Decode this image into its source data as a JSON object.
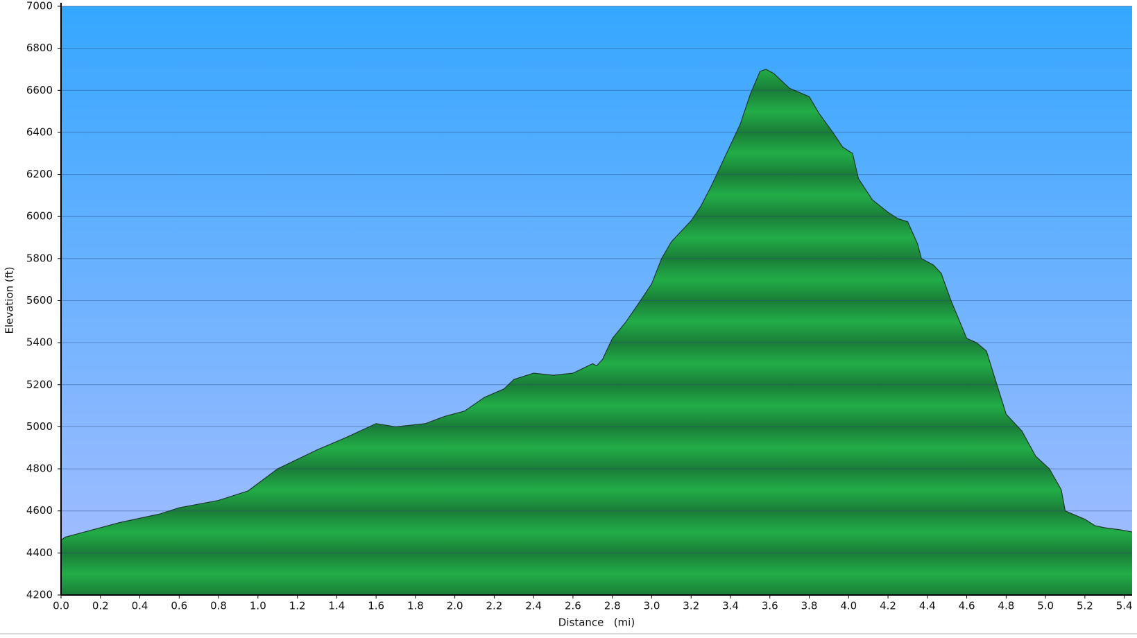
{
  "chart_data": {
    "type": "area",
    "xlabel": "Distance   (mi)",
    "ylabel": "Elevation (ft)",
    "color": "#22ad48",
    "line_color": "#1d3a2a",
    "grid": true,
    "x": [
      0.0,
      0.02,
      0.3,
      0.5,
      0.6,
      0.8,
      0.9,
      0.95,
      1.1,
      1.3,
      1.45,
      1.6,
      1.7,
      1.85,
      1.95,
      2.05,
      2.15,
      2.25,
      2.3,
      2.4,
      2.5,
      2.6,
      2.7,
      2.72,
      2.75,
      2.8,
      2.87,
      2.95,
      3.0,
      3.05,
      3.1,
      3.2,
      3.25,
      3.3,
      3.4,
      3.45,
      3.5,
      3.55,
      3.58,
      3.62,
      3.7,
      3.8,
      3.85,
      3.92,
      3.97,
      4.02,
      4.05,
      4.12,
      4.2,
      4.25,
      4.3,
      4.35,
      4.37,
      4.43,
      4.47,
      4.52,
      4.6,
      4.65,
      4.7,
      4.77,
      4.8,
      4.88,
      4.95,
      5.02,
      5.08,
      5.1,
      5.2,
      5.25,
      5.3,
      5.38,
      5.44
    ],
    "values": [
      4460,
      4475,
      4545,
      4585,
      4615,
      4650,
      4680,
      4695,
      4800,
      4890,
      4950,
      5015,
      5000,
      5015,
      5050,
      5075,
      5140,
      5180,
      5225,
      5255,
      5245,
      5255,
      5300,
      5290,
      5320,
      5420,
      5500,
      5610,
      5680,
      5800,
      5880,
      5980,
      6050,
      6140,
      6340,
      6440,
      6580,
      6690,
      6700,
      6680,
      6610,
      6570,
      6490,
      6400,
      6330,
      6300,
      6180,
      6080,
      6020,
      5990,
      5975,
      5870,
      5800,
      5770,
      5730,
      5600,
      5420,
      5400,
      5360,
      5150,
      5060,
      4980,
      4860,
      4800,
      4700,
      4600,
      4560,
      4530,
      4520,
      4510,
      4500
    ],
    "xlim": [
      0,
      5.44
    ],
    "ylim": [
      4200,
      7000
    ],
    "xticks": [
      {
        "value": 0,
        "label": "0.0"
      },
      0.2,
      0.4,
      0.6,
      0.8,
      {
        "value": 1,
        "label": "1.0"
      },
      1.2,
      1.4,
      1.6,
      1.8,
      {
        "value": 2,
        "label": "2.0"
      },
      2.2,
      2.4,
      2.6,
      2.8,
      {
        "value": 3,
        "label": "3.0"
      },
      3.2,
      3.4,
      3.6,
      3.8,
      {
        "value": 4,
        "label": "4.0"
      },
      4.2,
      4.4,
      4.6,
      4.8,
      {
        "value": 5,
        "label": "5.0"
      },
      5.2,
      5.4
    ],
    "yticks": [
      4200,
      4400,
      4600,
      4800,
      5000,
      5200,
      5400,
      5600,
      5800,
      6000,
      6200,
      6400,
      6600,
      6800,
      7000
    ]
  }
}
